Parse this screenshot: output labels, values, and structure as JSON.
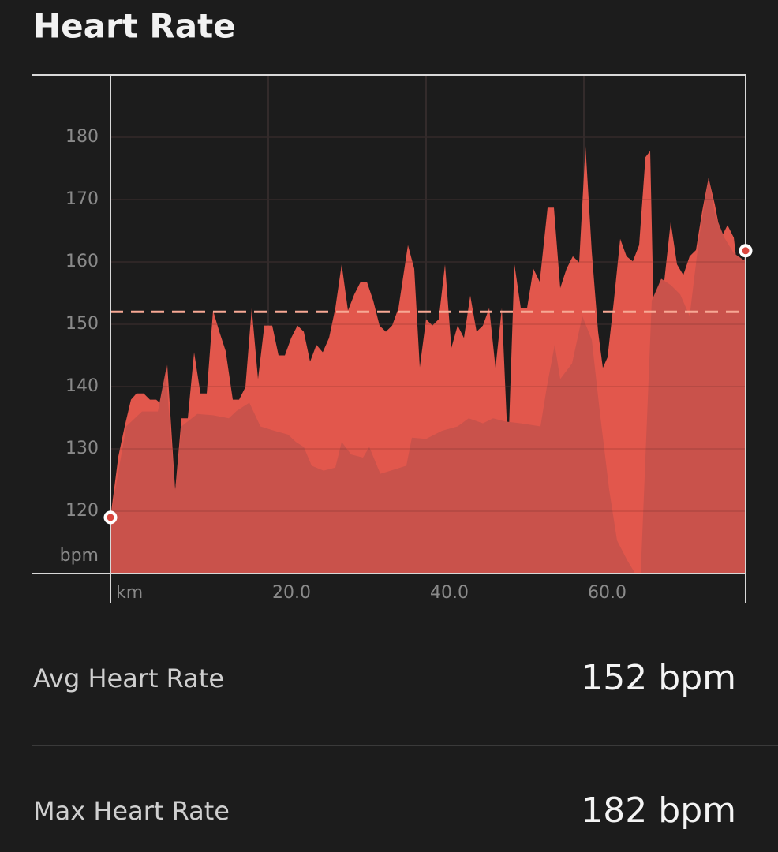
{
  "header": {
    "title": "Heart Rate"
  },
  "chart_data": {
    "type": "area",
    "y_label": "bpm",
    "x_label": "km",
    "xlim": [
      0,
      80.5
    ],
    "ylim": [
      110,
      190
    ],
    "xticks": [
      {
        "value": 20,
        "label": "20.0"
      },
      {
        "value": 40,
        "label": "40.0"
      },
      {
        "value": 60,
        "label": "60.0"
      }
    ],
    "yticks": [
      120,
      130,
      140,
      150,
      160,
      170,
      180
    ],
    "grid": true,
    "avg_line": 152,
    "series": [
      {
        "color": "#e2574c",
        "x": [
          0,
          1,
          1.8,
          2.6,
          3.3,
          4.2,
          5,
          5.8,
          6.5,
          7.2,
          8.2,
          9,
          9.8,
          10.6,
          11.4,
          12.2,
          13,
          13.8,
          14.6,
          15.5,
          16.3,
          17.1,
          17.9,
          18.7,
          19.5,
          20.5,
          21.3,
          22.1,
          22.9,
          23.7,
          24.5,
          25.3,
          26.1,
          26.9,
          27.7,
          28.5,
          29.3,
          30.1,
          30.9,
          31.7,
          32.5,
          33.3,
          34.1,
          34.9,
          35.7,
          36.5,
          37.7,
          38.5,
          39.2,
          40,
          40.8,
          41.6,
          42.4,
          43.2,
          44,
          44.8,
          45.6,
          46.4,
          47.2,
          48,
          48.8,
          49.6,
          50.4,
          51.2,
          52,
          52.8,
          53.6,
          54.4,
          55.4,
          56.2,
          57,
          57.8,
          58.6,
          59.4,
          60.2,
          61,
          61.8,
          62.4,
          63,
          63.8,
          64.6,
          65.4,
          66.2,
          67,
          67.8,
          68.4,
          69.2,
          70.2,
          71,
          71.8,
          72.6,
          73.4,
          74.2,
          75,
          75.8,
          76.6,
          77.4,
          78.2,
          79,
          79.8,
          80.5
        ],
        "values": [
          119,
          128.8,
          133.6,
          137.9,
          138.9,
          138.9,
          137.9,
          137.9,
          137.1,
          143.5,
          123.3,
          134.9,
          134.9,
          145.5,
          138.9,
          138.9,
          152.2,
          148.8,
          145.7,
          137.9,
          137.9,
          139.9,
          152.6,
          141.2,
          149.8,
          149.8,
          145,
          145,
          147.8,
          149.8,
          148.8,
          144,
          146.7,
          145.5,
          147.8,
          152.6,
          159.6,
          152.2,
          154.8,
          156.8,
          156.8,
          153.8,
          149.8,
          148.8,
          149.8,
          152.6,
          162.7,
          158.9,
          143.1,
          150.8,
          149.8,
          150.8,
          159.6,
          146.2,
          149.8,
          147.8,
          154.6,
          148.8,
          149.8,
          152.6,
          143,
          152.6,
          129.3,
          159.6,
          152.6,
          152.6,
          158.9,
          156.8,
          168.7,
          168.7,
          155.8,
          158.9,
          160.9,
          159.9,
          178.6,
          161.6,
          148.8,
          143,
          144.7,
          153.8,
          163.7,
          160.9,
          160.1,
          162.7,
          176.8,
          177.8,
          130.3,
          157.1,
          166.4,
          159.6,
          157.9,
          160.9,
          161.9,
          168.2,
          173.5,
          169.2,
          163.9,
          165.9,
          163.9,
          155.1,
          161.8
        ]
      },
      {
        "color": "#c9524b",
        "x": [
          0,
          2,
          4,
          6,
          7,
          8.2,
          9,
          11,
          13,
          15,
          16,
          17.6,
          19,
          20.5,
          22.5,
          23.5,
          24.5,
          25.5,
          27,
          28.5,
          29.3,
          30.5,
          32,
          32.8,
          34.2,
          36,
          37.5,
          38.2,
          40,
          42,
          44,
          45.4,
          47.2,
          48.5,
          50,
          52,
          54.5,
          55.3,
          56.3,
          57,
          58.5,
          59.8,
          61,
          62,
          63.2,
          64.2,
          65.5,
          66.5,
          67.2,
          67.8,
          68.6,
          69.8,
          71,
          72.2,
          73.4,
          74.6,
          75.8,
          76.6,
          77.8,
          79,
          80.5
        ],
        "values": [
          119,
          133.6,
          136,
          136,
          142.5,
          123.3,
          133.6,
          135.6,
          135.4,
          134.9,
          136.1,
          137.4,
          133.6,
          133,
          132.3,
          131.1,
          130.3,
          127.3,
          126.5,
          127,
          131.1,
          129.1,
          128.6,
          130.3,
          126,
          126.7,
          127.3,
          131.8,
          131.6,
          132.9,
          133.6,
          134.9,
          134.1,
          134.9,
          134.4,
          134.1,
          133.6,
          139.9,
          146.7,
          141.2,
          143.7,
          151.3,
          147.5,
          136.1,
          123.5,
          115.3,
          112.1,
          110,
          110,
          128.6,
          153.8,
          157.3,
          156.3,
          154.8,
          151.3,
          163.9,
          173.5,
          167.7,
          163.9,
          161.4,
          160.1
        ]
      }
    ]
  },
  "stats": [
    {
      "label": "Avg Heart Rate",
      "value": "152 bpm"
    },
    {
      "label": "Max Heart Rate",
      "value": "182 bpm"
    }
  ]
}
